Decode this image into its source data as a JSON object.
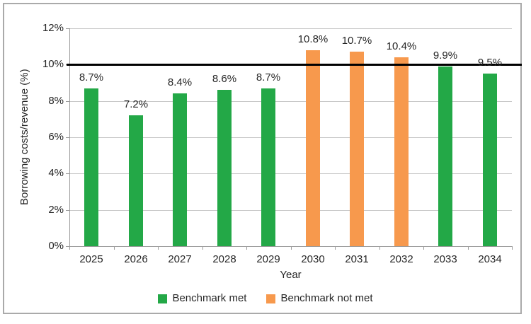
{
  "figure": {
    "background": "#ffffff",
    "border_color": "#aaaaaa"
  },
  "chart_data": {
    "type": "bar",
    "title": "",
    "xlabel": "Year",
    "ylabel": "Borrowing costs/revenue (%)",
    "categories": [
      "2025",
      "2026",
      "2027",
      "2028",
      "2029",
      "2030",
      "2031",
      "2032",
      "2033",
      "2034"
    ],
    "values": [
      8.7,
      7.2,
      8.4,
      8.6,
      8.7,
      10.8,
      10.7,
      10.4,
      9.9,
      9.5
    ],
    "data_labels": [
      "8.7%",
      "7.2%",
      "8.4%",
      "8.6%",
      "8.7%",
      "10.8%",
      "10.7%",
      "10.4%",
      "9.9%",
      "9.5%"
    ],
    "benchmark_met": [
      true,
      true,
      true,
      true,
      true,
      false,
      false,
      false,
      true,
      true
    ],
    "benchmark_line_value": 10,
    "ylim": [
      0,
      12
    ],
    "ytick_step": 2,
    "ytick_labels": [
      "0%",
      "2%",
      "4%",
      "6%",
      "8%",
      "10%",
      "12%"
    ],
    "grid": true,
    "legend_position": "bottom",
    "legend": [
      {
        "label": "Benchmark met",
        "key": "met"
      },
      {
        "label": "Benchmark not met",
        "key": "not_met"
      }
    ],
    "colors": {
      "met": "#23a847",
      "not_met": "#f7994d",
      "benchmark_line": "#000000",
      "gridline": "#c8c8c8",
      "axis": "#9b9b9b",
      "text": "#262626"
    }
  }
}
